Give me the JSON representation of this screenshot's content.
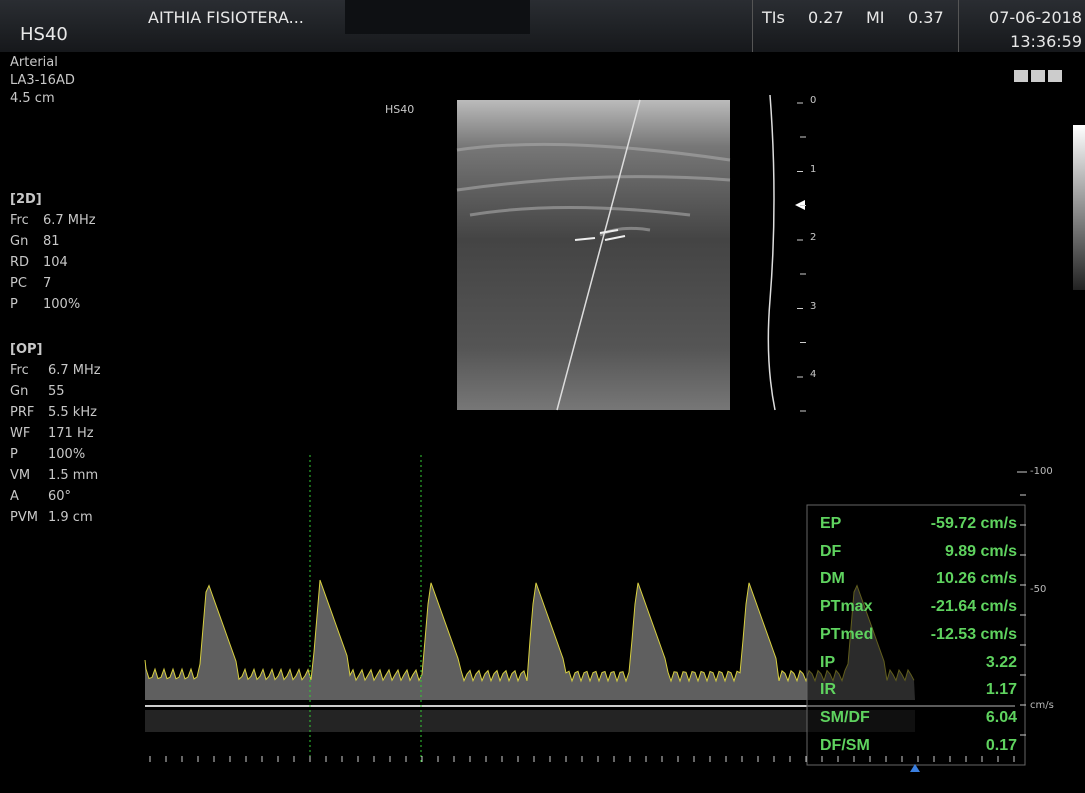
{
  "header": {
    "probe": "HS40",
    "patient": "AITHIA FISIOTERA...",
    "tis_label": "TIs",
    "tis": "0.27",
    "mi_label": "MI",
    "mi": "0.37",
    "date": "07-06-2018",
    "time": "13:36:59"
  },
  "preset": [
    "Arterial",
    "LA3-16AD",
    "4.5 cm"
  ],
  "mode_2d": {
    "title": "[2D]",
    "params": [
      [
        "Frc",
        "6.7 MHz"
      ],
      [
        "Gn",
        "81"
      ],
      [
        "RD",
        "104"
      ],
      [
        "PC",
        "7"
      ],
      [
        "P",
        "100%"
      ]
    ]
  },
  "mode_op": {
    "title": "[OP]",
    "params": [
      [
        "Frc",
        "6.7 MHz"
      ],
      [
        "Gn",
        "55"
      ],
      [
        "PRF",
        "5.5 kHz"
      ],
      [
        "WF",
        "171 Hz"
      ],
      [
        "P",
        "100%"
      ],
      [
        "VM",
        "1.5 mm"
      ],
      [
        "A",
        "60°"
      ],
      [
        "PVM",
        "1.9 cm"
      ]
    ]
  },
  "image": {
    "label": "HS40",
    "depth_ticks": [
      "0",
      "1",
      "2",
      "3",
      "4"
    ]
  },
  "doppler": {
    "scale": [
      "-100",
      "-50",
      "cm/s"
    ]
  },
  "measurements": [
    [
      "EP",
      "-59.72 cm/s"
    ],
    [
      "DF",
      "9.89 cm/s"
    ],
    [
      "DM",
      "10.26 cm/s"
    ],
    [
      "PTmax",
      "-21.64 cm/s"
    ],
    [
      "PTmed",
      "-12.53 cm/s"
    ],
    [
      "IP",
      "3.22"
    ],
    [
      "IR",
      "1.17"
    ],
    [
      "SM/DF",
      "6.04"
    ],
    [
      "DF/SM",
      "0.17"
    ]
  ]
}
